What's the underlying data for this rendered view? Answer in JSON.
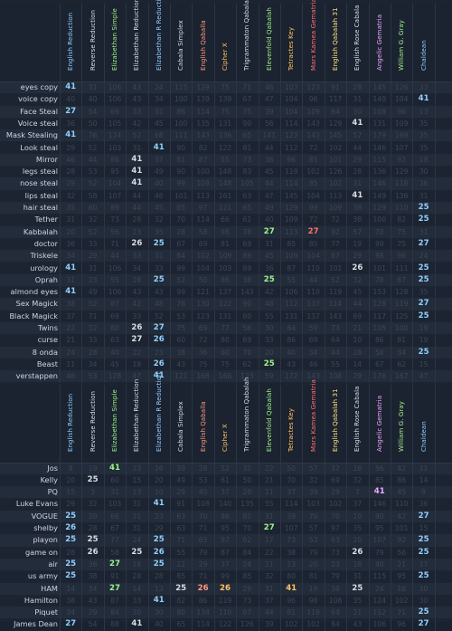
{
  "columns": [
    {
      "name": "English Reduction",
      "color": "#8fd0ff"
    },
    {
      "name": "Reverse Reduction",
      "color": "#d7dde8"
    },
    {
      "name": "Elizabethan Simple",
      "color": "#9ef58a"
    },
    {
      "name": "Elizabethan Reduction",
      "color": "#d7dde8"
    },
    {
      "name": "Elizabethan R Reduction",
      "color": "#8fd0ff"
    },
    {
      "name": "Cabala Simplex",
      "color": "#d7dde8"
    },
    {
      "name": "English Qaballa",
      "color": "#ff9a7a"
    },
    {
      "name": "Cipher X",
      "color": "#ffc560"
    },
    {
      "name": "Trigrammaton Qabalah",
      "color": "#d7dde8"
    },
    {
      "name": "Elevenfold Qabalah",
      "color": "#9ef58a"
    },
    {
      "name": "Tetractes Key",
      "color": "#ffc560"
    },
    {
      "name": "Mars Kamea Gematria",
      "color": "#ff6f6f"
    },
    {
      "name": "English Qabalah 31",
      "color": "#ffe680"
    },
    {
      "name": "English Rose Cabala",
      "color": "#d7dde8"
    },
    {
      "name": "Angelic Gematria",
      "color": "#f0a8ff"
    },
    {
      "name": "William G. Gray",
      "color": "#9ef58a"
    },
    {
      "name": "Chaldean",
      "color": "#8fd0ff"
    }
  ],
  "highlight_values": [
    "25",
    "26",
    "27",
    "41"
  ],
  "table1": {
    "rows": [
      {
        "label": "eyes copy",
        "values": [
          "41",
          "31",
          "106",
          "43",
          "24",
          "115",
          "139",
          "75",
          "71",
          "46",
          "103",
          "123",
          "91",
          "28",
          "145",
          "126",
          "33"
        ]
      },
      {
        "label": "voice copy",
        "values": [
          "40",
          "40",
          "106",
          "43",
          "34",
          "100",
          "139",
          "139",
          "67",
          "47",
          "104",
          "96",
          "117",
          "31",
          "149",
          "104",
          "41"
        ]
      },
      {
        "label": "Face Steal",
        "values": [
          "27",
          "54",
          "69",
          "33",
          "31",
          "86",
          "114",
          "75",
          "75",
          "39",
          "104",
          "109",
          "84",
          "30",
          "108",
          "96",
          "13"
        ]
      },
      {
        "label": "Voice steal",
        "values": [
          "36",
          "50",
          "105",
          "42",
          "45",
          "100",
          "135",
          "131",
          "90",
          "56",
          "114",
          "143",
          "129",
          "41",
          "131",
          "109",
          "35"
        ]
      },
      {
        "label": "Mask Stealing",
        "values": [
          "41",
          "76",
          "124",
          "52",
          "68",
          "111",
          "143",
          "136",
          "65",
          "141",
          "123",
          "143",
          "145",
          "57",
          "179",
          "169",
          "35"
        ]
      },
      {
        "label": "Look steal",
        "values": [
          "29",
          "52",
          "103",
          "31",
          "41",
          "90",
          "82",
          "122",
          "81",
          "44",
          "112",
          "72",
          "102",
          "44",
          "146",
          "107",
          "35"
        ]
      },
      {
        "label": "Mirror",
        "values": [
          "46",
          "44",
          "86",
          "41",
          "37",
          "81",
          "87",
          "55",
          "73",
          "36",
          "96",
          "85",
          "101",
          "29",
          "115",
          "92",
          "18"
        ]
      },
      {
        "label": "legs steal",
        "values": [
          "28",
          "53",
          "95",
          "41",
          "49",
          "90",
          "100",
          "148",
          "83",
          "45",
          "119",
          "102",
          "126",
          "28",
          "136",
          "129",
          "30"
        ]
      },
      {
        "label": "nose steal",
        "values": [
          "29",
          "52",
          "104",
          "41",
          "40",
          "99",
          "108",
          "148",
          "105",
          "44",
          "114",
          "85",
          "102",
          "31",
          "146",
          "118",
          "36"
        ]
      },
      {
        "label": "lips steal",
        "values": [
          "32",
          "58",
          "107",
          "44",
          "46",
          "101",
          "113",
          "161",
          "63",
          "47",
          "145",
          "104",
          "113",
          "41",
          "149",
          "136",
          "31"
        ]
      },
      {
        "label": "hair steal",
        "values": [
          "35",
          "60",
          "89",
          "44",
          "45",
          "85",
          "97",
          "121",
          "65",
          "49",
          "129",
          "99",
          "109",
          "38",
          "129",
          "110",
          "25"
        ]
      },
      {
        "label": "Tether",
        "values": [
          "31",
          "32",
          "73",
          "28",
          "32",
          "70",
          "114",
          "66",
          "61",
          "40",
          "109",
          "72",
          "72",
          "38",
          "100",
          "82",
          "25"
        ]
      },
      {
        "label": "Kabbalah",
        "values": [
          "20",
          "52",
          "56",
          "23",
          "35",
          "28",
          "58",
          "98",
          "78",
          "27",
          "113",
          "27",
          "92",
          "57",
          "70",
          "75",
          "31"
        ]
      },
      {
        "label": "doctor",
        "values": [
          "36",
          "33",
          "71",
          "26",
          "25",
          "67",
          "69",
          "81",
          "69",
          "31",
          "85",
          "85",
          "77",
          "19",
          "99",
          "75",
          "27"
        ]
      },
      {
        "label": "Triskele",
        "values": [
          "34",
          "29",
          "44",
          "33",
          "31",
          "84",
          "102",
          "109",
          "89",
          "45",
          "109",
          "104",
          "87",
          "29",
          "98",
          "96",
          "24"
        ]
      },
      {
        "label": "urology",
        "values": [
          "41",
          "31",
          "106",
          "34",
          "33",
          "99",
          "104",
          "103",
          "89",
          "36",
          "87",
          "110",
          "101",
          "26",
          "101",
          "111",
          "25"
        ]
      },
      {
        "label": "Oprah",
        "values": [
          "31",
          "23",
          "55",
          "28",
          "25",
          "52",
          "50",
          "86",
          "38",
          "25",
          "55",
          "44",
          "52",
          "32",
          "78",
          "67",
          "25"
        ]
      },
      {
        "label": "almond eyes",
        "values": [
          "41",
          "49",
          "106",
          "43",
          "43",
          "99",
          "121",
          "137",
          "143",
          "42",
          "106",
          "110",
          "119",
          "45",
          "153",
          "128",
          "35"
        ]
      },
      {
        "label": "Sex Magick",
        "values": [
          "38",
          "52",
          "87",
          "42",
          "48",
          "76",
          "130",
          "122",
          "90",
          "48",
          "112",
          "137",
          "114",
          "44",
          "128",
          "119",
          "27"
        ]
      },
      {
        "label": "Black Magick",
        "values": [
          "37",
          "71",
          "69",
          "33",
          "52",
          "53",
          "123",
          "131",
          "60",
          "55",
          "131",
          "137",
          "143",
          "69",
          "117",
          "125",
          "25"
        ]
      },
      {
        "label": "Twins",
        "values": [
          "22",
          "32",
          "80",
          "26",
          "27",
          "75",
          "69",
          "77",
          "56",
          "30",
          "64",
          "59",
          "73",
          "21",
          "105",
          "100",
          "19"
        ]
      },
      {
        "label": "curse",
        "values": [
          "21",
          "33",
          "63",
          "27",
          "26",
          "60",
          "72",
          "80",
          "69",
          "33",
          "86",
          "69",
          "64",
          "10",
          "86",
          "81",
          "19"
        ]
      },
      {
        "label": "8 onda",
        "values": [
          "24",
          "28",
          "40",
          "22",
          "23",
          "38",
          "36",
          "60",
          "70",
          "20",
          "40",
          "34",
          "44",
          "28",
          "58",
          "34",
          "25"
        ]
      },
      {
        "label": "Beast",
        "values": [
          "11",
          "34",
          "45",
          "18",
          "26",
          "43",
          "75",
          "75",
          "62",
          "25",
          "43",
          "46",
          "55",
          "14",
          "67",
          "62",
          "15"
        ]
      },
      {
        "label": "verstappen",
        "values": [
          "46",
          "53",
          "128",
          "47",
          "41",
          "121",
          "166",
          "160",
          "123",
          "59",
          "172",
          "143",
          "108",
          "29",
          "176",
          "167",
          "47"
        ]
      }
    ]
  },
  "table2": {
    "rows": [
      {
        "label": "Jos",
        "values": [
          "8",
          "19",
          "41",
          "23",
          "16",
          "39",
          "28",
          "52",
          "32",
          "22",
          "50",
          "57",
          "32",
          "16",
          "56",
          "42",
          "11"
        ]
      },
      {
        "label": "Kelly",
        "values": [
          "20",
          "25",
          "60",
          "15",
          "20",
          "49",
          "53",
          "61",
          "50",
          "21",
          "70",
          "32",
          "69",
          "32",
          "85",
          "86",
          "14"
        ]
      },
      {
        "label": "PQ",
        "values": [
          "15",
          "3",
          "31",
          "13",
          "10",
          "29",
          "45",
          "37",
          "20",
          "11",
          "37",
          "39",
          "29",
          "7",
          "41",
          "45",
          "9"
        ]
      },
      {
        "label": "Luke Evans",
        "values": [
          "29",
          "32",
          "103",
          "31",
          "41",
          "91",
          "108",
          "140",
          "135",
          "55",
          "114",
          "103",
          "102",
          "37",
          "146",
          "110",
          "36"
        ]
      },
      {
        "label": "VOGUE",
        "values": [
          "25",
          "20",
          "66",
          "21",
          "23",
          "63",
          "70",
          "86",
          "81",
          "31",
          "39",
          "70",
          "70",
          "10",
          "90",
          "42",
          "27"
        ]
      },
      {
        "label": "shelby",
        "values": [
          "26",
          "28",
          "67",
          "31",
          "29",
          "63",
          "71",
          "95",
          "70",
          "27",
          "107",
          "57",
          "97",
          "35",
          "95",
          "101",
          "15"
        ]
      },
      {
        "label": "playon",
        "values": [
          "25",
          "25",
          "77",
          "24",
          "25",
          "71",
          "65",
          "97",
          "62",
          "17",
          "73",
          "53",
          "63",
          "20",
          "107",
          "92",
          "25"
        ]
      },
      {
        "label": "game on",
        "values": [
          "28",
          "26",
          "58",
          "25",
          "26",
          "55",
          "79",
          "87",
          "84",
          "22",
          "38",
          "79",
          "73",
          "26",
          "79",
          "56",
          "25"
        ]
      },
      {
        "label": "air",
        "values": [
          "25",
          "36",
          "27",
          "18",
          "25",
          "22",
          "29",
          "37",
          "24",
          "21",
          "23",
          "20",
          "23",
          "18",
          "40",
          "21",
          "17"
        ]
      },
      {
        "label": "us army",
        "values": [
          "25",
          "38",
          "91",
          "28",
          "28",
          "85",
          "71",
          "99",
          "85",
          "32",
          "80",
          "81",
          "79",
          "31",
          "115",
          "95",
          "25"
        ]
      },
      {
        "label": "HAM",
        "values": [
          "14",
          "34",
          "27",
          "14",
          "13",
          "25",
          "26",
          "26",
          "29",
          "31",
          "41",
          "19",
          "38",
          "25",
          "24",
          "16",
          "10"
        ]
      },
      {
        "label": "Hamilton",
        "values": [
          "38",
          "43",
          "87",
          "33",
          "41",
          "82",
          "86",
          "119",
          "73",
          "37",
          "96",
          "98",
          "108",
          "35",
          "124",
          "102",
          "30"
        ]
      },
      {
        "label": "Piquet",
        "values": [
          "34",
          "29",
          "84",
          "30",
          "30",
          "80",
          "134",
          "110",
          "67",
          "44",
          "81",
          "116",
          "64",
          "21",
          "112",
          "71",
          "25"
        ]
      },
      {
        "label": "James Dean",
        "values": [
          "27",
          "54",
          "88",
          "41",
          "40",
          "65",
          "114",
          "122",
          "126",
          "39",
          "102",
          "102",
          "84",
          "43",
          "106",
          "96",
          "27"
        ]
      }
    ]
  }
}
